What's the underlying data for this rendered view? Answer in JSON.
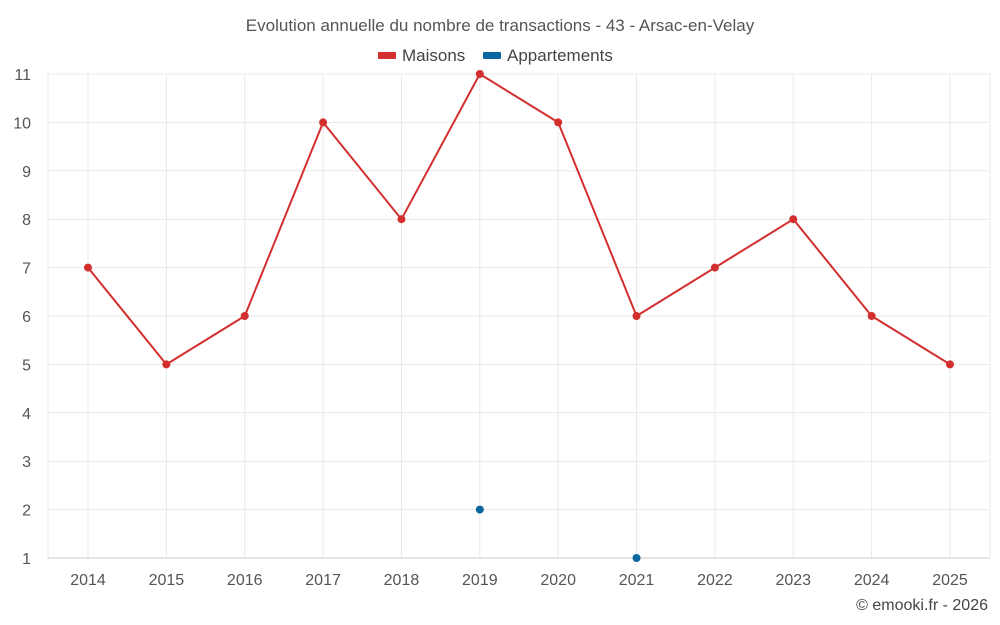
{
  "chart_data": {
    "type": "line",
    "title": "Evolution annuelle du nombre de transactions - 43 - Arsac-en-Velay",
    "xlabel": "",
    "ylabel": "",
    "categories": [
      "2014",
      "2015",
      "2016",
      "2017",
      "2018",
      "2019",
      "2020",
      "2021",
      "2022",
      "2023",
      "2024",
      "2025"
    ],
    "ylim": [
      1,
      11
    ],
    "yticks": [
      1,
      2,
      3,
      4,
      5,
      6,
      7,
      8,
      9,
      10,
      11
    ],
    "grid": true,
    "legend": "top-center",
    "series": [
      {
        "name": "Maisons",
        "color": "#d32f2f",
        "values": [
          7,
          5,
          6,
          10,
          8,
          11,
          10,
          6,
          7,
          8,
          6,
          5
        ]
      },
      {
        "name": "Appartements",
        "color": "#0a66a0",
        "values": [
          null,
          null,
          null,
          null,
          null,
          2,
          null,
          1,
          null,
          null,
          null,
          null
        ]
      }
    ]
  },
  "credit": "© emooki.fr - 2026"
}
